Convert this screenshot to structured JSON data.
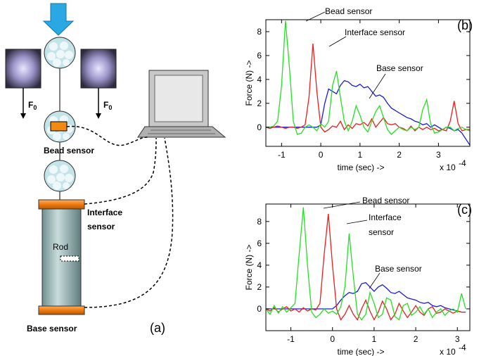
{
  "diagram": {
    "panel_label": "(a)",
    "forces": [
      {
        "symbol": "F",
        "subscript": "0"
      },
      {
        "symbol": "F",
        "subscript": "0"
      }
    ],
    "labels": {
      "bead_sensor": "Bead sensor",
      "interface_sensor": [
        "Interface",
        "sensor"
      ],
      "rod": "Rod",
      "base_sensor": "Base sensor"
    }
  },
  "chart_data": [
    {
      "type": "line",
      "panel_label": "(b)",
      "xlabel": "time (sec) ->",
      "ylabel": "Force (N) ->",
      "x_multiplier": "x 10",
      "x_multiplier_exponent": "-4",
      "annotations": [
        "Bead sensor",
        "Interface sensor",
        "Base sensor"
      ],
      "xlim": [
        -1.4,
        3.8
      ],
      "ylim": [
        -1.6,
        9
      ],
      "xticks": [
        -1,
        0,
        1,
        2,
        3
      ],
      "yticks": [
        0,
        2,
        4,
        6,
        8
      ],
      "x": [
        -1.4,
        -1.3,
        -1.2,
        -1.1,
        -1.0,
        -0.9,
        -0.8,
        -0.7,
        -0.6,
        -0.5,
        -0.4,
        -0.3,
        -0.2,
        -0.1,
        0,
        0.1,
        0.2,
        0.3,
        0.4,
        0.5,
        0.6,
        0.7,
        0.8,
        0.9,
        1.0,
        1.1,
        1.2,
        1.3,
        1.4,
        1.5,
        1.6,
        1.7,
        1.8,
        1.9,
        2.0,
        2.1,
        2.2,
        2.3,
        2.4,
        2.5,
        2.6,
        2.7,
        2.8,
        2.9,
        3.0,
        3.1,
        3.2,
        3.3,
        3.4,
        3.5,
        3.6,
        3.7,
        3.8
      ],
      "series": [
        {
          "color": "#1a1ae0",
          "values": [
            0,
            0,
            0,
            0,
            0,
            0,
            0,
            0,
            0,
            0,
            0,
            0,
            0,
            0,
            0.2,
            2,
            3.2,
            3,
            2.8,
            3.5,
            3.9,
            3.8,
            3.5,
            3.4,
            3.6,
            3.3,
            3.4,
            3,
            2.6,
            2.7,
            2.5,
            2,
            1.6,
            1.4,
            1.2,
            1,
            0.8,
            0.7,
            0.5,
            0.4,
            0.2,
            0.3,
            0,
            0.2,
            0,
            -0.2,
            0,
            -0.1,
            -0.3,
            -0.2,
            -0.5,
            -1,
            -1.5
          ]
        },
        {
          "color": "#ee1c1c",
          "values": [
            0,
            -0.1,
            0,
            0.1,
            0,
            -0.1,
            0,
            0,
            -0.1,
            0,
            0.2,
            2.5,
            7,
            3,
            0,
            -0.4,
            -0.2,
            0.1,
            0,
            0.5,
            -0.2,
            0.2,
            -0.1,
            0.3,
            0.2,
            0.4,
            0.1,
            0.7,
            0,
            0.4,
            0.8,
            0.3,
            0.2,
            0.3,
            0,
            -0.1,
            -0.3,
            0.1,
            -0.3,
            0,
            -0.2,
            0,
            -0.2,
            -0.1,
            -0.3,
            -0.2,
            -0.3,
            0.5,
            2.2,
            0.3,
            -0.3,
            -0.2,
            -0.2
          ]
        },
        {
          "color": "#22e022",
          "values": [
            0,
            0,
            0.1,
            0.5,
            3.5,
            8.9,
            5,
            0.5,
            -0.6,
            -0.5,
            0,
            0.2,
            0,
            -0.3,
            0.3,
            0,
            0.5,
            3.5,
            4.7,
            2.5,
            0.5,
            -0.3,
            0.5,
            1.8,
            1,
            0,
            -0.4,
            0.5,
            1.3,
            1.8,
            0.8,
            -0.2,
            -0.6,
            -0.3,
            0,
            -0.2,
            -0.3,
            0,
            -0.2,
            0,
            1.5,
            2.3,
            0.3,
            -0.5,
            -0.4,
            -0.2,
            0,
            0,
            -0.3,
            -0.1,
            0,
            -0.2,
            -0.3
          ]
        }
      ]
    },
    {
      "type": "line",
      "panel_label": "(c)",
      "xlabel": "time (sec) ->",
      "ylabel": "Force (N) ->",
      "x_multiplier": "x 10",
      "x_multiplier_exponent": "-4",
      "annotations": [
        "Bead sensor",
        "Interface",
        "sensor",
        "Base sensor"
      ],
      "xlim": [
        -1.6,
        3.3
      ],
      "ylim": [
        -2,
        9.6
      ],
      "xticks": [
        -1,
        0,
        1,
        2,
        3
      ],
      "yticks": [
        0,
        2,
        4,
        6,
        8
      ],
      "x": [
        -1.6,
        -1.5,
        -1.4,
        -1.3,
        -1.2,
        -1.1,
        -1.0,
        -0.9,
        -0.8,
        -0.7,
        -0.6,
        -0.5,
        -0.4,
        -0.3,
        -0.2,
        -0.1,
        0,
        0.1,
        0.2,
        0.3,
        0.4,
        0.5,
        0.6,
        0.7,
        0.8,
        0.9,
        1.0,
        1.1,
        1.2,
        1.3,
        1.4,
        1.5,
        1.6,
        1.7,
        1.8,
        1.9,
        2.0,
        2.1,
        2.2,
        2.3,
        2.4,
        2.5,
        2.6,
        2.7,
        2.8,
        2.9,
        3.0,
        3.1,
        3.2
      ],
      "series": [
        {
          "color": "#1a1ae0",
          "values": [
            0,
            0,
            0,
            0,
            0,
            0,
            0,
            0,
            0,
            0,
            0,
            0,
            0,
            0,
            0,
            0,
            0,
            0.3,
            0.8,
            1.2,
            1.5,
            1.4,
            1.6,
            2.3,
            2.4,
            2,
            1.6,
            2,
            2.2,
            1.9,
            1.5,
            1.4,
            1.6,
            1.3,
            1,
            0.9,
            0.8,
            0.6,
            0.5,
            0.6,
            0.3,
            0.2,
            0.3,
            0.1,
            0,
            -0.1,
            -0.2,
            -0.3,
            -0.3
          ]
        },
        {
          "color": "#ee1c1c",
          "values": [
            0,
            -0.2,
            0.1,
            -0.3,
            0,
            0.2,
            -0.2,
            0,
            -0.3,
            0.1,
            -0.2,
            0,
            -0.1,
            0.5,
            5,
            8.7,
            4,
            0,
            -1,
            -0.5,
            0.3,
            -0.5,
            -1,
            0,
            0.8,
            -0.2,
            -1,
            -0.3,
            0.7,
            0,
            -1,
            -0.5,
            0.5,
            -0.2,
            -0.8,
            -0.3,
            0.3,
            -0.3,
            -0.6,
            0,
            0.2,
            -0.4,
            -0.3,
            0,
            -0.2,
            -0.4,
            -0.2,
            -0.3,
            -0.3
          ]
        },
        {
          "color": "#22e022",
          "values": [
            0,
            -0.5,
            0.3,
            -0.4,
            0.2,
            -0.3,
            0.1,
            0.5,
            5,
            9.3,
            4,
            -0.3,
            -0.8,
            -0.5,
            0,
            -0.4,
            -0.2,
            -0.5,
            0.2,
            2,
            6.9,
            3,
            -0.5,
            -1,
            -0.5,
            1.5,
            0.5,
            -0.8,
            -0.5,
            1,
            0.8,
            -0.7,
            -1,
            0.3,
            0.5,
            -0.6,
            -0.3,
            0.2,
            -0.5,
            0,
            -0.8,
            -0.3,
            0,
            -0.6,
            -0.2,
            0,
            -0.3,
            1.4,
            0
          ]
        }
      ]
    }
  ]
}
